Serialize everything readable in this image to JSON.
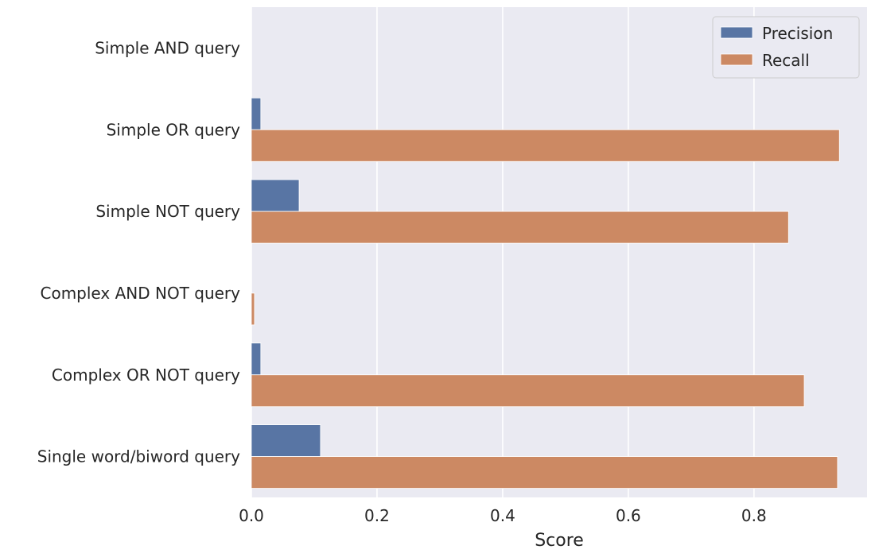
{
  "chart_data": {
    "type": "bar",
    "orientation": "horizontal",
    "categories": [
      "Simple AND query",
      "Simple OR query",
      "Simple NOT query",
      "Complex AND NOT query",
      "Complex OR NOT query",
      "Single word/biword query"
    ],
    "series": [
      {
        "name": "Precision",
        "color": "#5875a4",
        "values": [
          0.0,
          0.015,
          0.076,
          0.0,
          0.015,
          0.11
        ]
      },
      {
        "name": "Recall",
        "color": "#cc8963",
        "values": [
          0.0,
          0.936,
          0.855,
          0.005,
          0.88,
          0.933
        ]
      }
    ],
    "xlabel": "Score",
    "ylabel": "",
    "xlim": [
      0.0,
      0.98
    ],
    "xticks": [
      "0.0",
      "0.2",
      "0.4",
      "0.6",
      "0.8"
    ],
    "xtick_values": [
      0.0,
      0.2,
      0.4,
      0.6,
      0.8
    ],
    "grid": true,
    "legend_position": "top-right",
    "background_color": "#eaeaf2",
    "grid_color": "#ffffff"
  }
}
